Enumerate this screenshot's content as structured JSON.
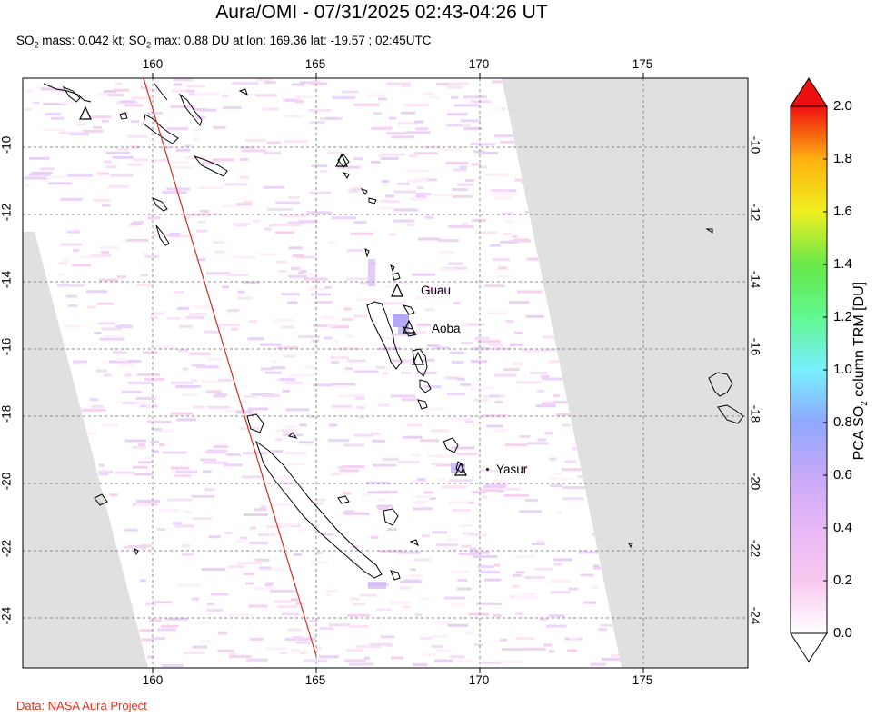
{
  "header": {
    "title": "Aura/OMI - 07/31/2025 02:43-04:26 UT",
    "subtitle_pre": "SO",
    "subtitle_sub": "2",
    "subtitle_mid1": " mass: 0.042 kt; SO",
    "subtitle_sub2": "2",
    "subtitle_post": " max: 0.88 DU at lon: 169.36 lat: -19.57 ; 02:45UTC"
  },
  "map": {
    "lon_ticks": [
      "160",
      "165",
      "170",
      "175"
    ],
    "lat_ticks": [
      "-10",
      "-12",
      "-14",
      "-16",
      "-18",
      "-20",
      "-22",
      "-24"
    ],
    "volcanoes": [
      {
        "name": "Guau"
      },
      {
        "name": "Aoba"
      },
      {
        "name": "Yasur"
      }
    ]
  },
  "colorbar": {
    "title_pre": "PCA SO",
    "title_sub": "2",
    "title_post": " column TRM [DU]",
    "ticks": [
      "2.0",
      "1.8",
      "1.6",
      "1.4",
      "1.2",
      "1.0",
      "0.8",
      "0.6",
      "0.4",
      "0.2",
      "0.0"
    ],
    "colors": [
      "#ffffff",
      "#f9c8f0",
      "#c8a8f8",
      "#8fa8ff",
      "#78f0ff",
      "#60f890",
      "#68e848",
      "#f0f020",
      "#ffb010",
      "#ff5010",
      "#ee1010"
    ]
  },
  "footer": {
    "credit": "Data: NASA Aura Project"
  }
}
